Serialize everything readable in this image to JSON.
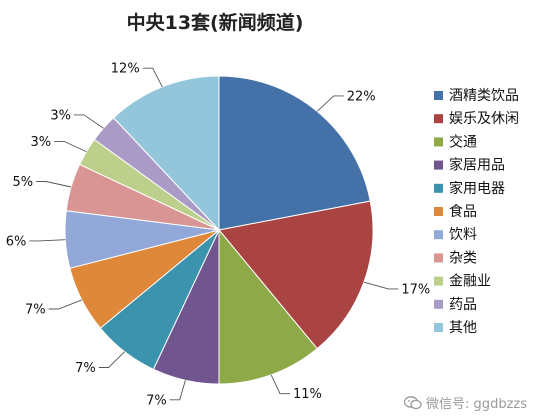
{
  "chart_data": {
    "type": "pie",
    "title": "中央13套(新闻频道)",
    "legend_position": "right",
    "slices": [
      {
        "name": "酒精类饮品",
        "value": 22,
        "label": "22%",
        "color": "#4472A8"
      },
      {
        "name": "娱乐及休闲",
        "value": 17,
        "label": "17%",
        "color": "#A94442"
      },
      {
        "name": "交通",
        "value": 11,
        "label": "11%",
        "color": "#8EAA48"
      },
      {
        "name": "家居用品",
        "value": 7,
        "label": "7%",
        "color": "#70558F"
      },
      {
        "name": "家用电器",
        "value": 7,
        "label": "7%",
        "color": "#3C93AD"
      },
      {
        "name": "食品",
        "value": 7,
        "label": "7%",
        "color": "#E0883A"
      },
      {
        "name": "饮料",
        "value": 6,
        "label": "6%",
        "color": "#92A8D8"
      },
      {
        "name": "杂类",
        "value": 5,
        "label": "5%",
        "color": "#D99594"
      },
      {
        "name": "金融业",
        "value": 3,
        "label": "3%",
        "color": "#BCD08C"
      },
      {
        "name": "药品",
        "value": 3,
        "label": "3%",
        "color": "#AA9BC6"
      },
      {
        "name": "其他",
        "value": 12,
        "label": "12%",
        "color": "#93C6DA"
      }
    ]
  },
  "watermark": {
    "icon": "wechat-icon",
    "text": "微信号: ggdbzzs"
  }
}
